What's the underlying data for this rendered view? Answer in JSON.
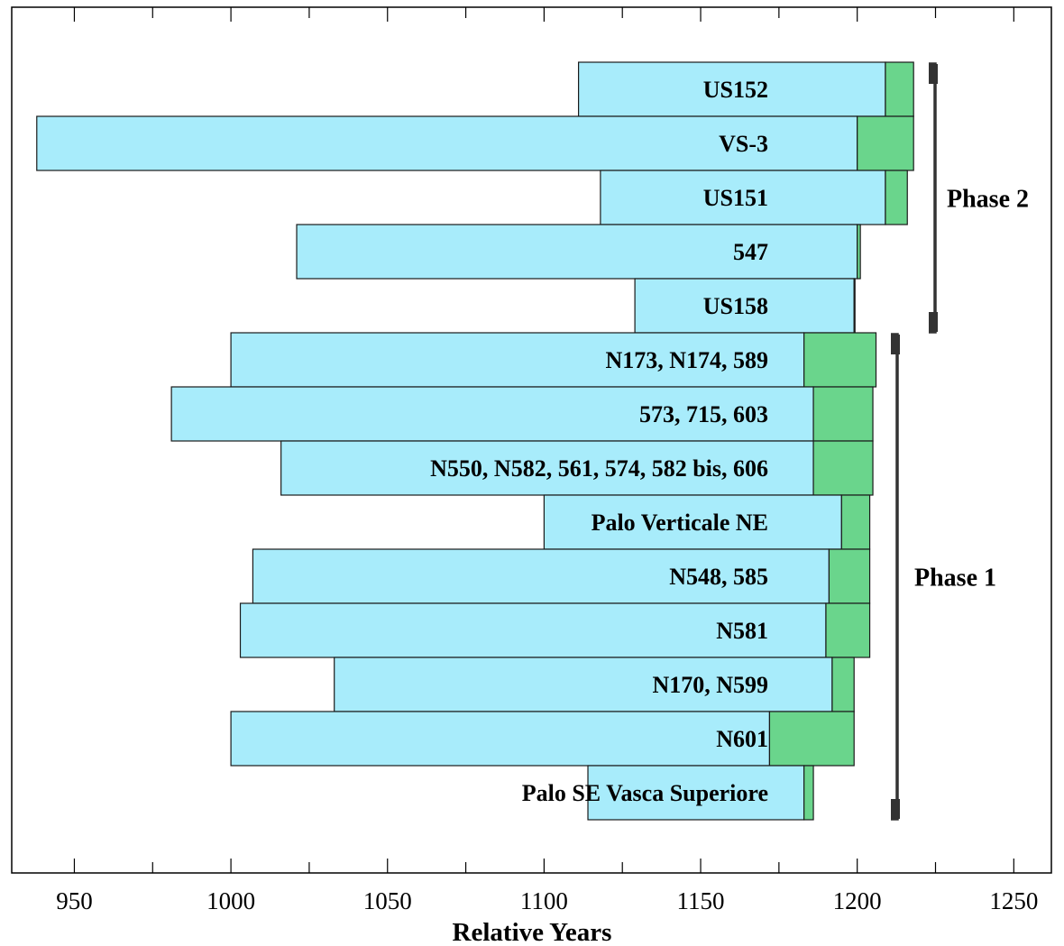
{
  "chart_data": {
    "type": "bar",
    "orientation": "horizontal",
    "stacked": true,
    "xlabel": "Relative Years",
    "xlim": [
      930,
      1262
    ],
    "xticks": [
      950,
      1000,
      1050,
      1100,
      1150,
      1200,
      1250
    ],
    "grid": false,
    "categories": [
      "US152",
      "VS-3",
      "US151",
      "547",
      "US158",
      "N173, N174, 589",
      "573, 715, 603",
      "N550, N582, 561, 574, 582 bis, 606",
      "Palo Verticale NE",
      "N548, 585",
      "N581",
      "N170, N599",
      "N601",
      "Palo SE Vasca Superiore"
    ],
    "series": [
      {
        "color": "#a8ecfb",
        "start": [
          1111,
          938,
          1118,
          1021,
          1129,
          1000,
          981,
          1016,
          1100,
          1007,
          1003,
          1033,
          1000,
          1114
        ],
        "end": [
          1209,
          1200,
          1209,
          1200,
          1199,
          1183,
          1186,
          1186,
          1195,
          1191,
          1190,
          1192,
          1172,
          1183
        ]
      },
      {
        "color": "#6ad58c",
        "start": [
          1209,
          1200,
          1209,
          1200,
          1199,
          1183,
          1186,
          1186,
          1195,
          1191,
          1190,
          1192,
          1172,
          1183
        ],
        "end": [
          1218,
          1218,
          1216,
          1201,
          1199,
          1206,
          1205,
          1205,
          1204,
          1204,
          1204,
          1199,
          1199,
          1186
        ]
      }
    ],
    "annotations": [
      {
        "text": "Phase 2",
        "from": "US152",
        "to": "US158"
      },
      {
        "text": "Phase 1",
        "from": "N173, N174, 589",
        "to": "Palo SE Vasca Superiore"
      }
    ]
  }
}
